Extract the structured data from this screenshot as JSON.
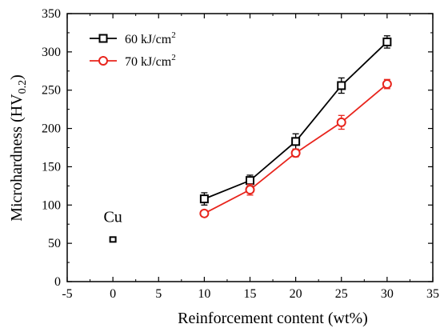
{
  "chart_data": {
    "type": "scatter",
    "xlabel": "Reinforcement content  (wt%)",
    "ylabel": "Microhardness (HV",
    "ylabel_sub": "0.2",
    "ylabel_close": ")",
    "xlim": [
      -5,
      35
    ],
    "ylim": [
      0,
      350
    ],
    "xticks": [
      -5,
      0,
      5,
      10,
      15,
      20,
      25,
      30,
      35
    ],
    "yticks": [
      0,
      50,
      100,
      150,
      200,
      250,
      300,
      350
    ],
    "grid": false,
    "legend_position": "top-left",
    "series": [
      {
        "name": "60 kJ/cm",
        "name_sup": "2",
        "color": "#000000",
        "marker": "square",
        "x": [
          10,
          15,
          20,
          25,
          30
        ],
        "y": [
          108,
          132,
          183,
          256,
          313
        ],
        "err": [
          8,
          7,
          10,
          10,
          8
        ]
      },
      {
        "name": "70 kJ/cm",
        "name_sup": "2",
        "color": "#e8241c",
        "marker": "circle",
        "x": [
          10,
          15,
          20,
          25,
          30
        ],
        "y": [
          89,
          120,
          168,
          208,
          258
        ],
        "err": [
          4,
          7,
          5,
          9,
          6
        ]
      }
    ],
    "reference_point": {
      "label": "Cu",
      "x": 0,
      "y": 55,
      "color": "#000000",
      "marker": "square"
    }
  }
}
